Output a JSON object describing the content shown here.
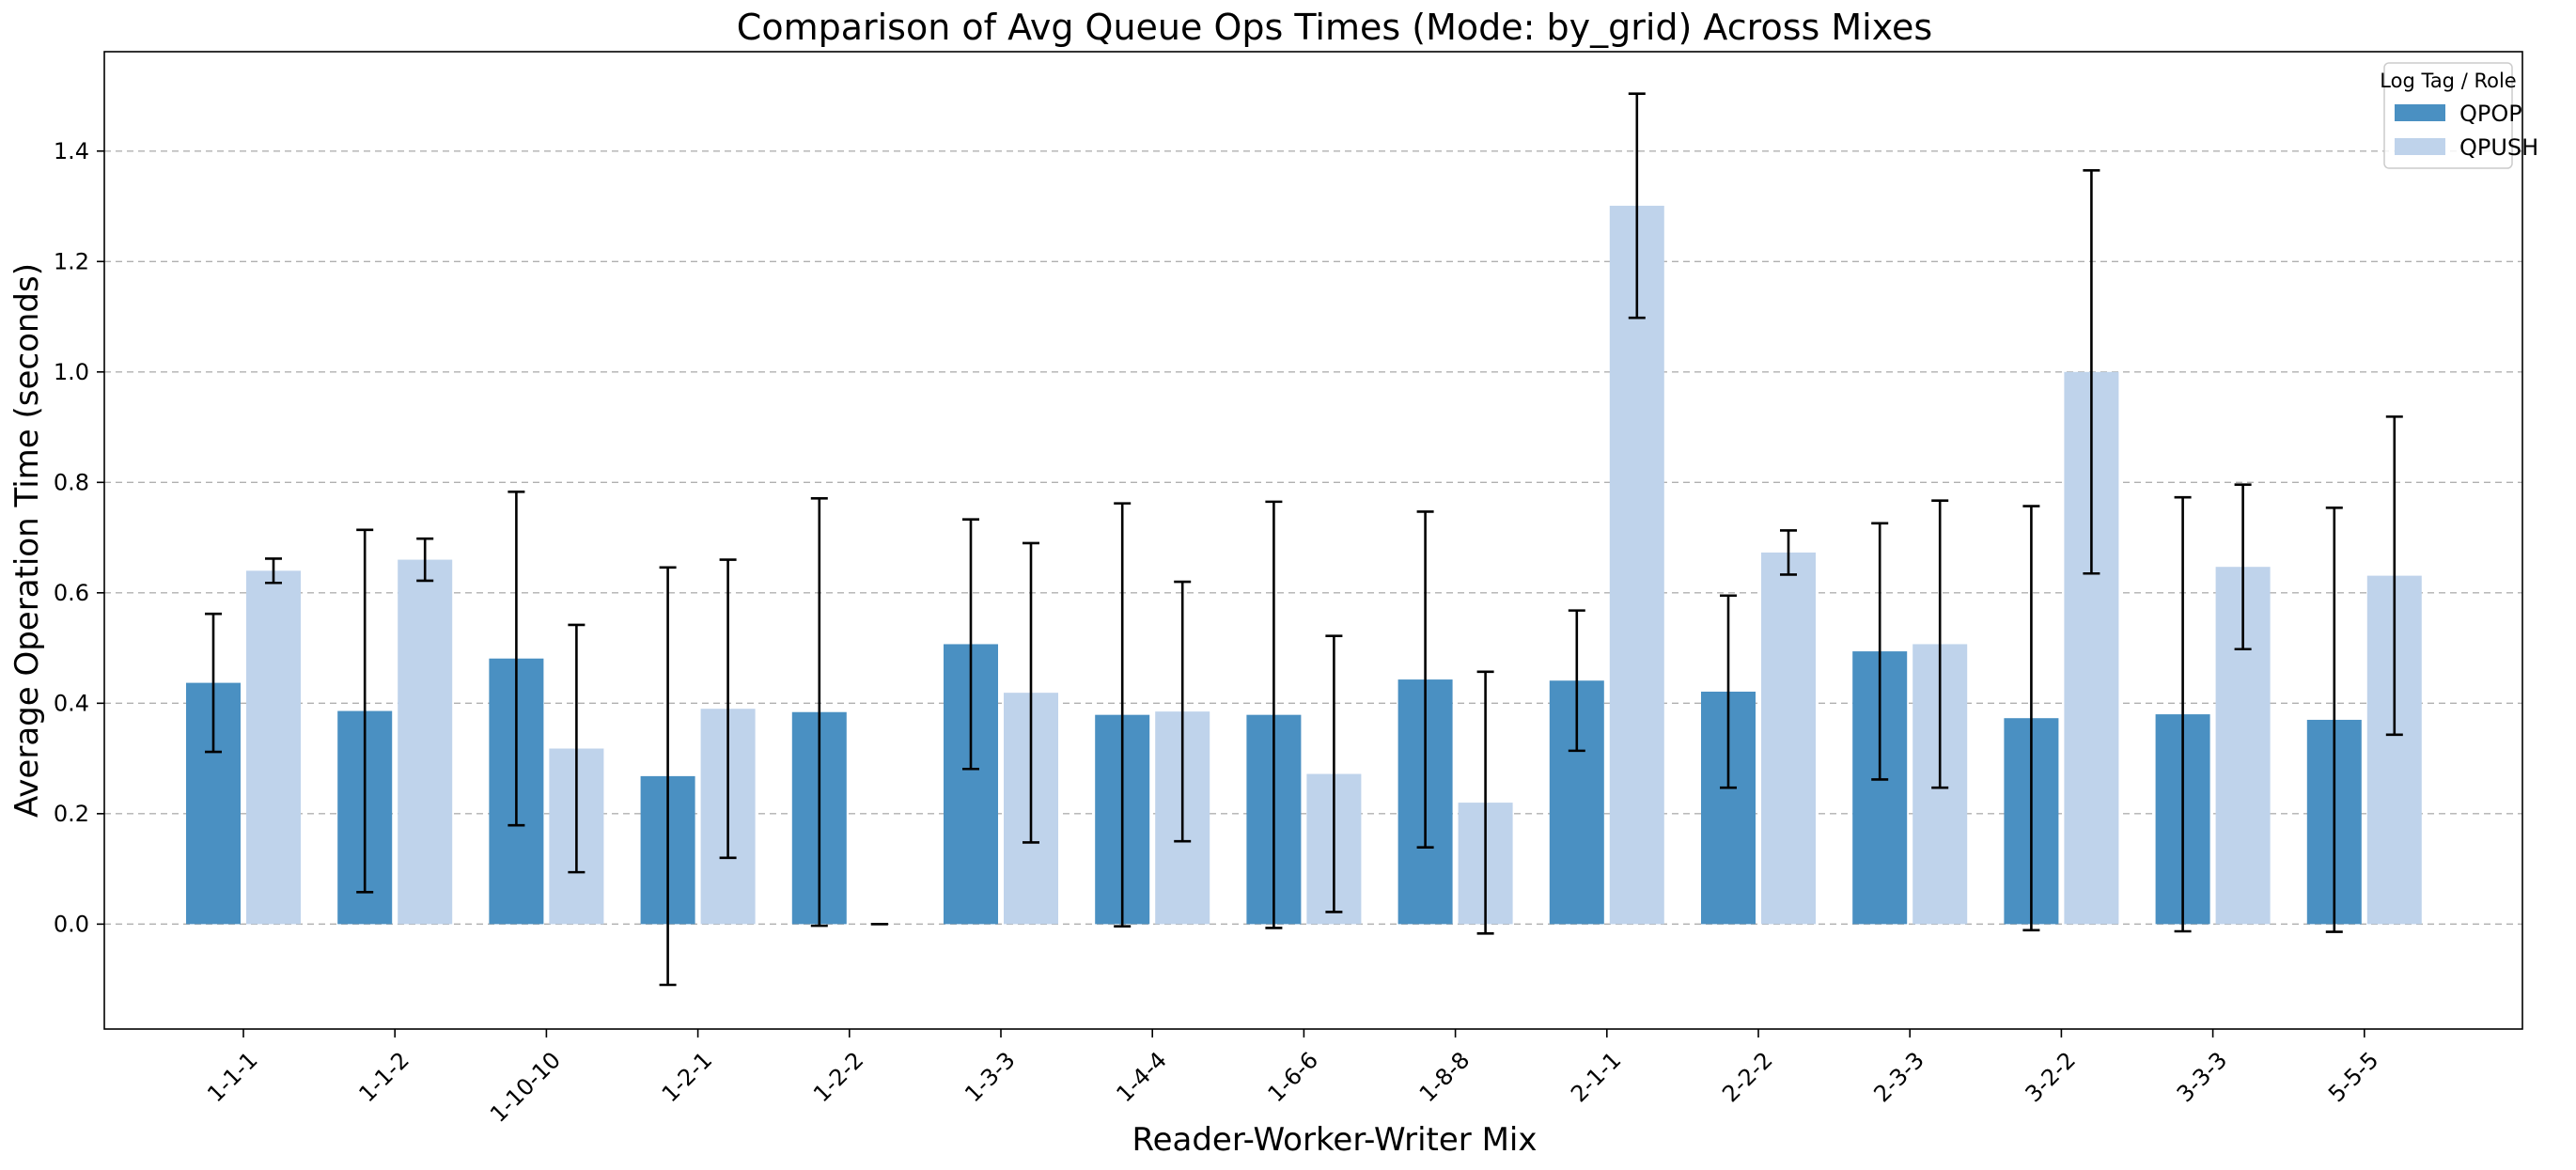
{
  "chart_data": {
    "type": "bar",
    "title": "Comparison of Avg Queue Ops Times (Mode: by_grid) Across Mixes",
    "xlabel": "Reader-Worker-Writer Mix",
    "ylabel": "Average Operation Time (seconds)",
    "ylim": [
      -0.19,
      1.58
    ],
    "yticks": [
      "0.0",
      "0.2",
      "0.4",
      "0.6",
      "0.8",
      "1.0",
      "1.2",
      "1.4"
    ],
    "grid": "horizontal dashed",
    "legend": {
      "title": "Log Tag / Role",
      "placement": "top-right"
    },
    "categories": [
      "1-1-1",
      "1-1-2",
      "1-10-10",
      "1-2-1",
      "1-2-2",
      "1-3-3",
      "1-4-4",
      "1-6-6",
      "1-8-8",
      "2-1-1",
      "2-2-2",
      "2-3-3",
      "3-2-2",
      "3-3-3",
      "5-5-5"
    ],
    "series": [
      {
        "name": "QPOP",
        "color": "#4a90c2",
        "values": [
          0.437,
          0.386,
          0.481,
          0.268,
          0.384,
          0.507,
          0.379,
          0.379,
          0.443,
          0.441,
          0.421,
          0.494,
          0.373,
          0.38,
          0.37
        ],
        "errors": [
          0.125,
          0.328,
          0.302,
          0.378,
          0.387,
          0.226,
          0.383,
          0.386,
          0.304,
          0.127,
          0.174,
          0.232,
          0.384,
          0.393,
          0.384
        ]
      },
      {
        "name": "QPUSH",
        "color": "#bfd3eb",
        "values": [
          0.64,
          0.66,
          0.318,
          0.39,
          0.0,
          0.419,
          0.385,
          0.272,
          0.22,
          1.301,
          0.673,
          0.507,
          1.0,
          0.647,
          0.631
        ],
        "errors": [
          0.022,
          0.038,
          0.224,
          0.27,
          0.0,
          0.271,
          0.235,
          0.25,
          0.237,
          0.203,
          0.04,
          0.26,
          0.365,
          0.149,
          0.288
        ]
      }
    ]
  }
}
